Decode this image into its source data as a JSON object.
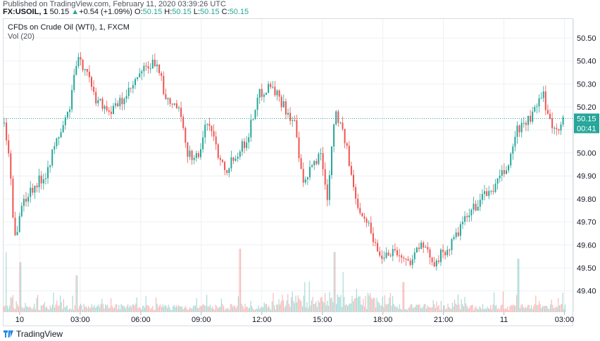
{
  "header": {
    "published": "Published on TradingView.com, February 11, 2020 03:39:26 UTC",
    "symbol": "FX:USOIL",
    "interval": "1",
    "price": "50.15",
    "change": "+0.54 (+1.09%)",
    "ohlc": [
      {
        "label": "O:",
        "value": "50.15"
      },
      {
        "label": "H:",
        "value": "50.15"
      },
      {
        "label": "L:",
        "value": "50.15"
      },
      {
        "label": "C:",
        "value": "50.15"
      }
    ]
  },
  "chart_title": "CFDs on Crude Oil (WTI), 1, FXCM",
  "volume_label": "Vol (20)",
  "last_price_label": "50.15",
  "countdown_label": "00:41",
  "footer_brand": "TradingView",
  "colors": {
    "up": "#26a69a",
    "down": "#ef5350",
    "price_tag": "#26a69a",
    "grid": "#eef0f3"
  },
  "chart_data": {
    "type": "candlestick",
    "title": "CFDs on Crude Oil (WTI), 1, FXCM",
    "ylim": [
      49.35,
      50.55
    ],
    "y_ticks": [
      "50.50",
      "50.40",
      "50.30",
      "50.20",
      "50.10",
      "50.00",
      "49.90",
      "49.80",
      "49.70",
      "49.60",
      "49.50",
      "49.40"
    ],
    "x_ticks": [
      "10",
      "03:00",
      "06:00",
      "09:00",
      "12:00",
      "15:00",
      "18:00",
      "21:00",
      "11",
      "03:00"
    ],
    "x_range_hours": [
      -0.8,
      27.4
    ],
    "price_path": [
      {
        "t": -0.8,
        "p": 50.13
      },
      {
        "t": -0.5,
        "p": 49.95
      },
      {
        "t": -0.3,
        "p": 49.62
      },
      {
        "t": 0.1,
        "p": 49.78
      },
      {
        "t": 0.6,
        "p": 49.85
      },
      {
        "t": 1.2,
        "p": 49.9
      },
      {
        "t": 1.8,
        "p": 50.05
      },
      {
        "t": 2.4,
        "p": 50.18
      },
      {
        "t": 2.8,
        "p": 50.4
      },
      {
        "t": 3.3,
        "p": 50.37
      },
      {
        "t": 3.6,
        "p": 50.25
      },
      {
        "t": 4.5,
        "p": 50.18
      },
      {
        "t": 5.3,
        "p": 50.25
      },
      {
        "t": 6.0,
        "p": 50.35
      },
      {
        "t": 6.8,
        "p": 50.4
      },
      {
        "t": 7.2,
        "p": 50.22
      },
      {
        "t": 7.8,
        "p": 50.2
      },
      {
        "t": 8.3,
        "p": 50.0
      },
      {
        "t": 8.8,
        "p": 49.98
      },
      {
        "t": 9.3,
        "p": 50.15
      },
      {
        "t": 9.8,
        "p": 50.0
      },
      {
        "t": 10.2,
        "p": 49.93
      },
      {
        "t": 10.7,
        "p": 50.0
      },
      {
        "t": 11.2,
        "p": 50.05
      },
      {
        "t": 11.8,
        "p": 50.25
      },
      {
        "t": 12.4,
        "p": 50.3
      },
      {
        "t": 13.1,
        "p": 50.2
      },
      {
        "t": 13.6,
        "p": 50.12
      },
      {
        "t": 14.0,
        "p": 49.85
      },
      {
        "t": 14.5,
        "p": 49.95
      },
      {
        "t": 14.9,
        "p": 50.0
      },
      {
        "t": 15.2,
        "p": 49.8
      },
      {
        "t": 15.6,
        "p": 50.2
      },
      {
        "t": 16.1,
        "p": 50.05
      },
      {
        "t": 16.6,
        "p": 49.8
      },
      {
        "t": 17.2,
        "p": 49.7
      },
      {
        "t": 17.8,
        "p": 49.55
      },
      {
        "t": 18.5,
        "p": 49.58
      },
      {
        "t": 19.2,
        "p": 49.52
      },
      {
        "t": 19.8,
        "p": 49.6
      },
      {
        "t": 20.5,
        "p": 49.53
      },
      {
        "t": 21.2,
        "p": 49.58
      },
      {
        "t": 22.0,
        "p": 49.7
      },
      {
        "t": 22.8,
        "p": 49.8
      },
      {
        "t": 23.5,
        "p": 49.85
      },
      {
        "t": 24.2,
        "p": 49.95
      },
      {
        "t": 24.6,
        "p": 50.1
      },
      {
        "t": 25.3,
        "p": 50.15
      },
      {
        "t": 25.9,
        "p": 50.25
      },
      {
        "t": 26.4,
        "p": 50.1
      },
      {
        "t": 26.9,
        "p": 50.14
      },
      {
        "t": 27.1,
        "p": 50.15
      }
    ],
    "volume_spikes": [
      {
        "t": -0.7,
        "v": 0.9
      },
      {
        "t": 0.0,
        "v": 0.75
      },
      {
        "t": 2.8,
        "v": 0.55
      },
      {
        "t": 10.9,
        "v": 0.95
      },
      {
        "t": 14.1,
        "v": 0.45
      },
      {
        "t": 15.6,
        "v": 0.9
      },
      {
        "t": 16.0,
        "v": 0.6
      },
      {
        "t": 19.0,
        "v": 0.45
      },
      {
        "t": 24.7,
        "v": 0.8
      }
    ],
    "last_price": 50.15
  }
}
